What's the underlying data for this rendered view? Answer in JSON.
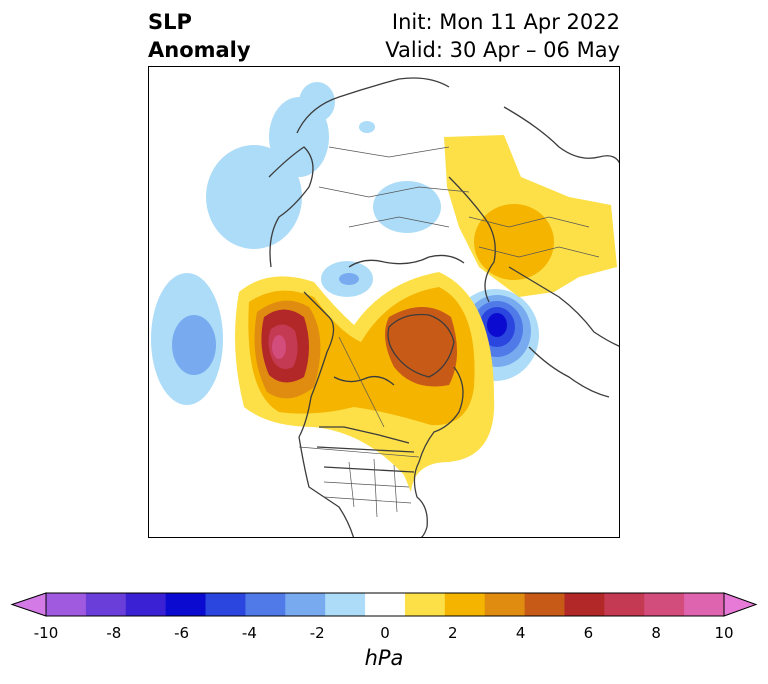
{
  "title": {
    "left_line1": "SLP",
    "left_line2": "Anomaly",
    "right_line1": "Init: Mon 11 Apr 2022",
    "right_line2": "Valid: 30 Apr – 06 May"
  },
  "colorbar": {
    "unit": "hPa",
    "ticks": [
      "-10",
      "-8",
      "-6",
      "-4",
      "-2",
      "0",
      "2",
      "4",
      "6",
      "8",
      "10"
    ],
    "colors": [
      "#d47ae6",
      "#a05ae0",
      "#6a3ed8",
      "#3a22d4",
      "#0a0ad0",
      "#2a46de",
      "#4f7ae8",
      "#78aaf0",
      "#acdcf8",
      "#ffffff",
      "#fde047",
      "#f4b400",
      "#e08c10",
      "#c85a18",
      "#b22828",
      "#c43a52",
      "#d24c7c",
      "#de64b0",
      "#e67ad6"
    ]
  },
  "map": {
    "projection": "north-polar-stereographic",
    "field": "SLP anomaly",
    "features": [
      "positive anomaly over Gulf of Alaska (~+8 hPa)",
      "positive anomaly over Canadian Arctic / Greenland",
      "positive anomaly over Scandinavia / Russia",
      "negative anomaly near Iceland (~-7 hPa)",
      "negative anomaly over North Pacific",
      "weak negative anomaly over Siberia"
    ]
  }
}
